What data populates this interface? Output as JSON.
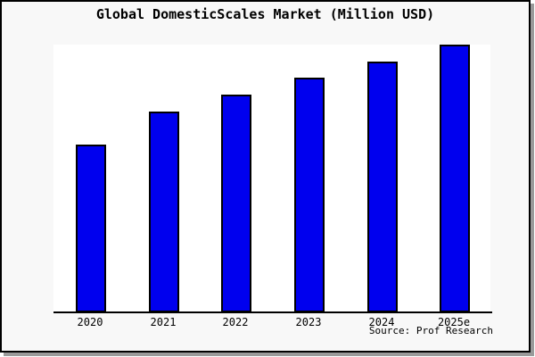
{
  "chart_data": {
    "type": "bar",
    "title": "Global DomesticScales Market (Million USD)",
    "categories": [
      "2020",
      "2021",
      "2022",
      "2023",
      "2024",
      "2025e"
    ],
    "values": [
      188,
      225,
      244,
      263,
      281,
      300
    ],
    "ylim": [
      0,
      300
    ],
    "xlabel": "",
    "ylabel": "",
    "grid": false,
    "legend": false,
    "bar_color": "#0000ee",
    "bar_border_color": "#000000",
    "axis_color": "#000000",
    "plot_background": "#ffffff"
  },
  "source": {
    "text": "Source: Prof Research"
  },
  "frame": {
    "background": "#f8f8f8",
    "border_color": "#000000",
    "shadow_color": "#9a9a9a"
  }
}
